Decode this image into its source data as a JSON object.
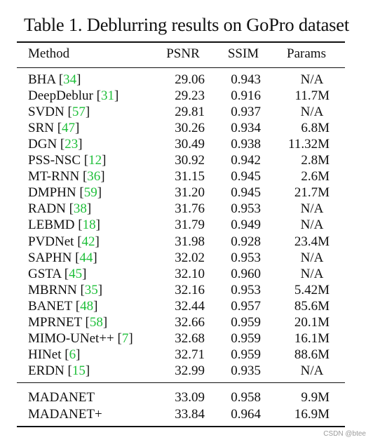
{
  "caption": "Table 1. Deblurring results on GoPro dataset",
  "headers": {
    "method": "Method",
    "psnr": "PSNR",
    "ssim": "SSIM",
    "params": "Params"
  },
  "rows": [
    {
      "name": "BHA",
      "ref": "34",
      "psnr": "29.06",
      "ssim": "0.943",
      "params": "N/A"
    },
    {
      "name": "DeepDeblur",
      "ref": "31",
      "psnr": "29.23",
      "ssim": "0.916",
      "params": "11.7M"
    },
    {
      "name": "SVDN",
      "ref": "57",
      "psnr": "29.81",
      "ssim": "0.937",
      "params": "N/A"
    },
    {
      "name": "SRN",
      "ref": "47",
      "psnr": "30.26",
      "ssim": "0.934",
      "params": "6.8M"
    },
    {
      "name": "DGN",
      "ref": "23",
      "psnr": "30.49",
      "ssim": "0.938",
      "params": "11.32M"
    },
    {
      "name": "PSS-NSC",
      "ref": "12",
      "psnr": "30.92",
      "ssim": "0.942",
      "params": "2.8M"
    },
    {
      "name": "MT-RNN",
      "ref": "36",
      "psnr": "31.15",
      "ssim": "0.945",
      "params": "2.6M"
    },
    {
      "name": "DMPHN",
      "ref": "59",
      "psnr": "31.20",
      "ssim": "0.945",
      "params": "21.7M"
    },
    {
      "name": "RADN",
      "ref": "38",
      "psnr": "31.76",
      "ssim": "0.953",
      "params": "N/A"
    },
    {
      "name": "LEBMD",
      "ref": "18",
      "psnr": "31.79",
      "ssim": "0.949",
      "params": "N/A"
    },
    {
      "name": "PVDNet",
      "ref": "42",
      "psnr": "31.98",
      "ssim": "0.928",
      "params": "23.4M"
    },
    {
      "name": "SAPHN",
      "ref": "44",
      "psnr": "32.02",
      "ssim": "0.953",
      "params": "N/A"
    },
    {
      "name": "GSTA",
      "ref": "45",
      "psnr": "32.10",
      "ssim": "0.960",
      "params": "N/A"
    },
    {
      "name": "MBRNN",
      "ref": "35",
      "psnr": "32.16",
      "ssim": "0.953",
      "params": "5.42M"
    },
    {
      "name": "BANET",
      "ref": "48",
      "psnr": "32.44",
      "ssim": "0.957",
      "params": "85.6M"
    },
    {
      "name": "MPRNET",
      "ref": "58",
      "psnr": "32.66",
      "ssim": "0.959",
      "params": "20.1M"
    },
    {
      "name": "MIMO-UNet++",
      "ref": "7",
      "psnr": "32.68",
      "ssim": "0.959",
      "params": "16.1M"
    },
    {
      "name": "HINet",
      "ref": "6",
      "psnr": "32.71",
      "ssim": "0.959",
      "params": "88.6M"
    },
    {
      "name": "ERDN",
      "ref": "15",
      "psnr": "32.99",
      "ssim": "0.935",
      "params": "N/A"
    }
  ],
  "ours": [
    {
      "name": "MADANET",
      "psnr": "33.09",
      "ssim": "0.958",
      "params": "9.9M"
    },
    {
      "name": "MADANET+",
      "psnr": "33.84",
      "ssim": "0.964",
      "params": "16.9M"
    }
  ],
  "watermark": "CSDN @btee"
}
